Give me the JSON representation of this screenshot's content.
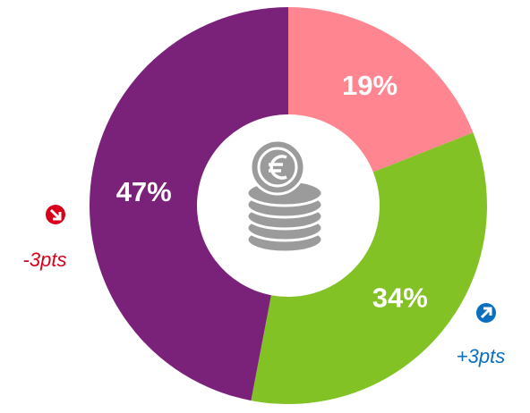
{
  "chart_data": {
    "type": "donut",
    "categories": [
      null,
      null,
      null
    ],
    "values": [
      19,
      34,
      47
    ],
    "value_labels": [
      "19%",
      "34%",
      "47%"
    ],
    "colors": [
      "#ff8591",
      "#82c225",
      "#7a2179"
    ],
    "annotations": [
      {
        "text": "-3pts",
        "color": "#d7001b",
        "direction": "down"
      },
      {
        "text": "+3pts",
        "color": "#0a6fc0",
        "direction": "up"
      }
    ]
  }
}
